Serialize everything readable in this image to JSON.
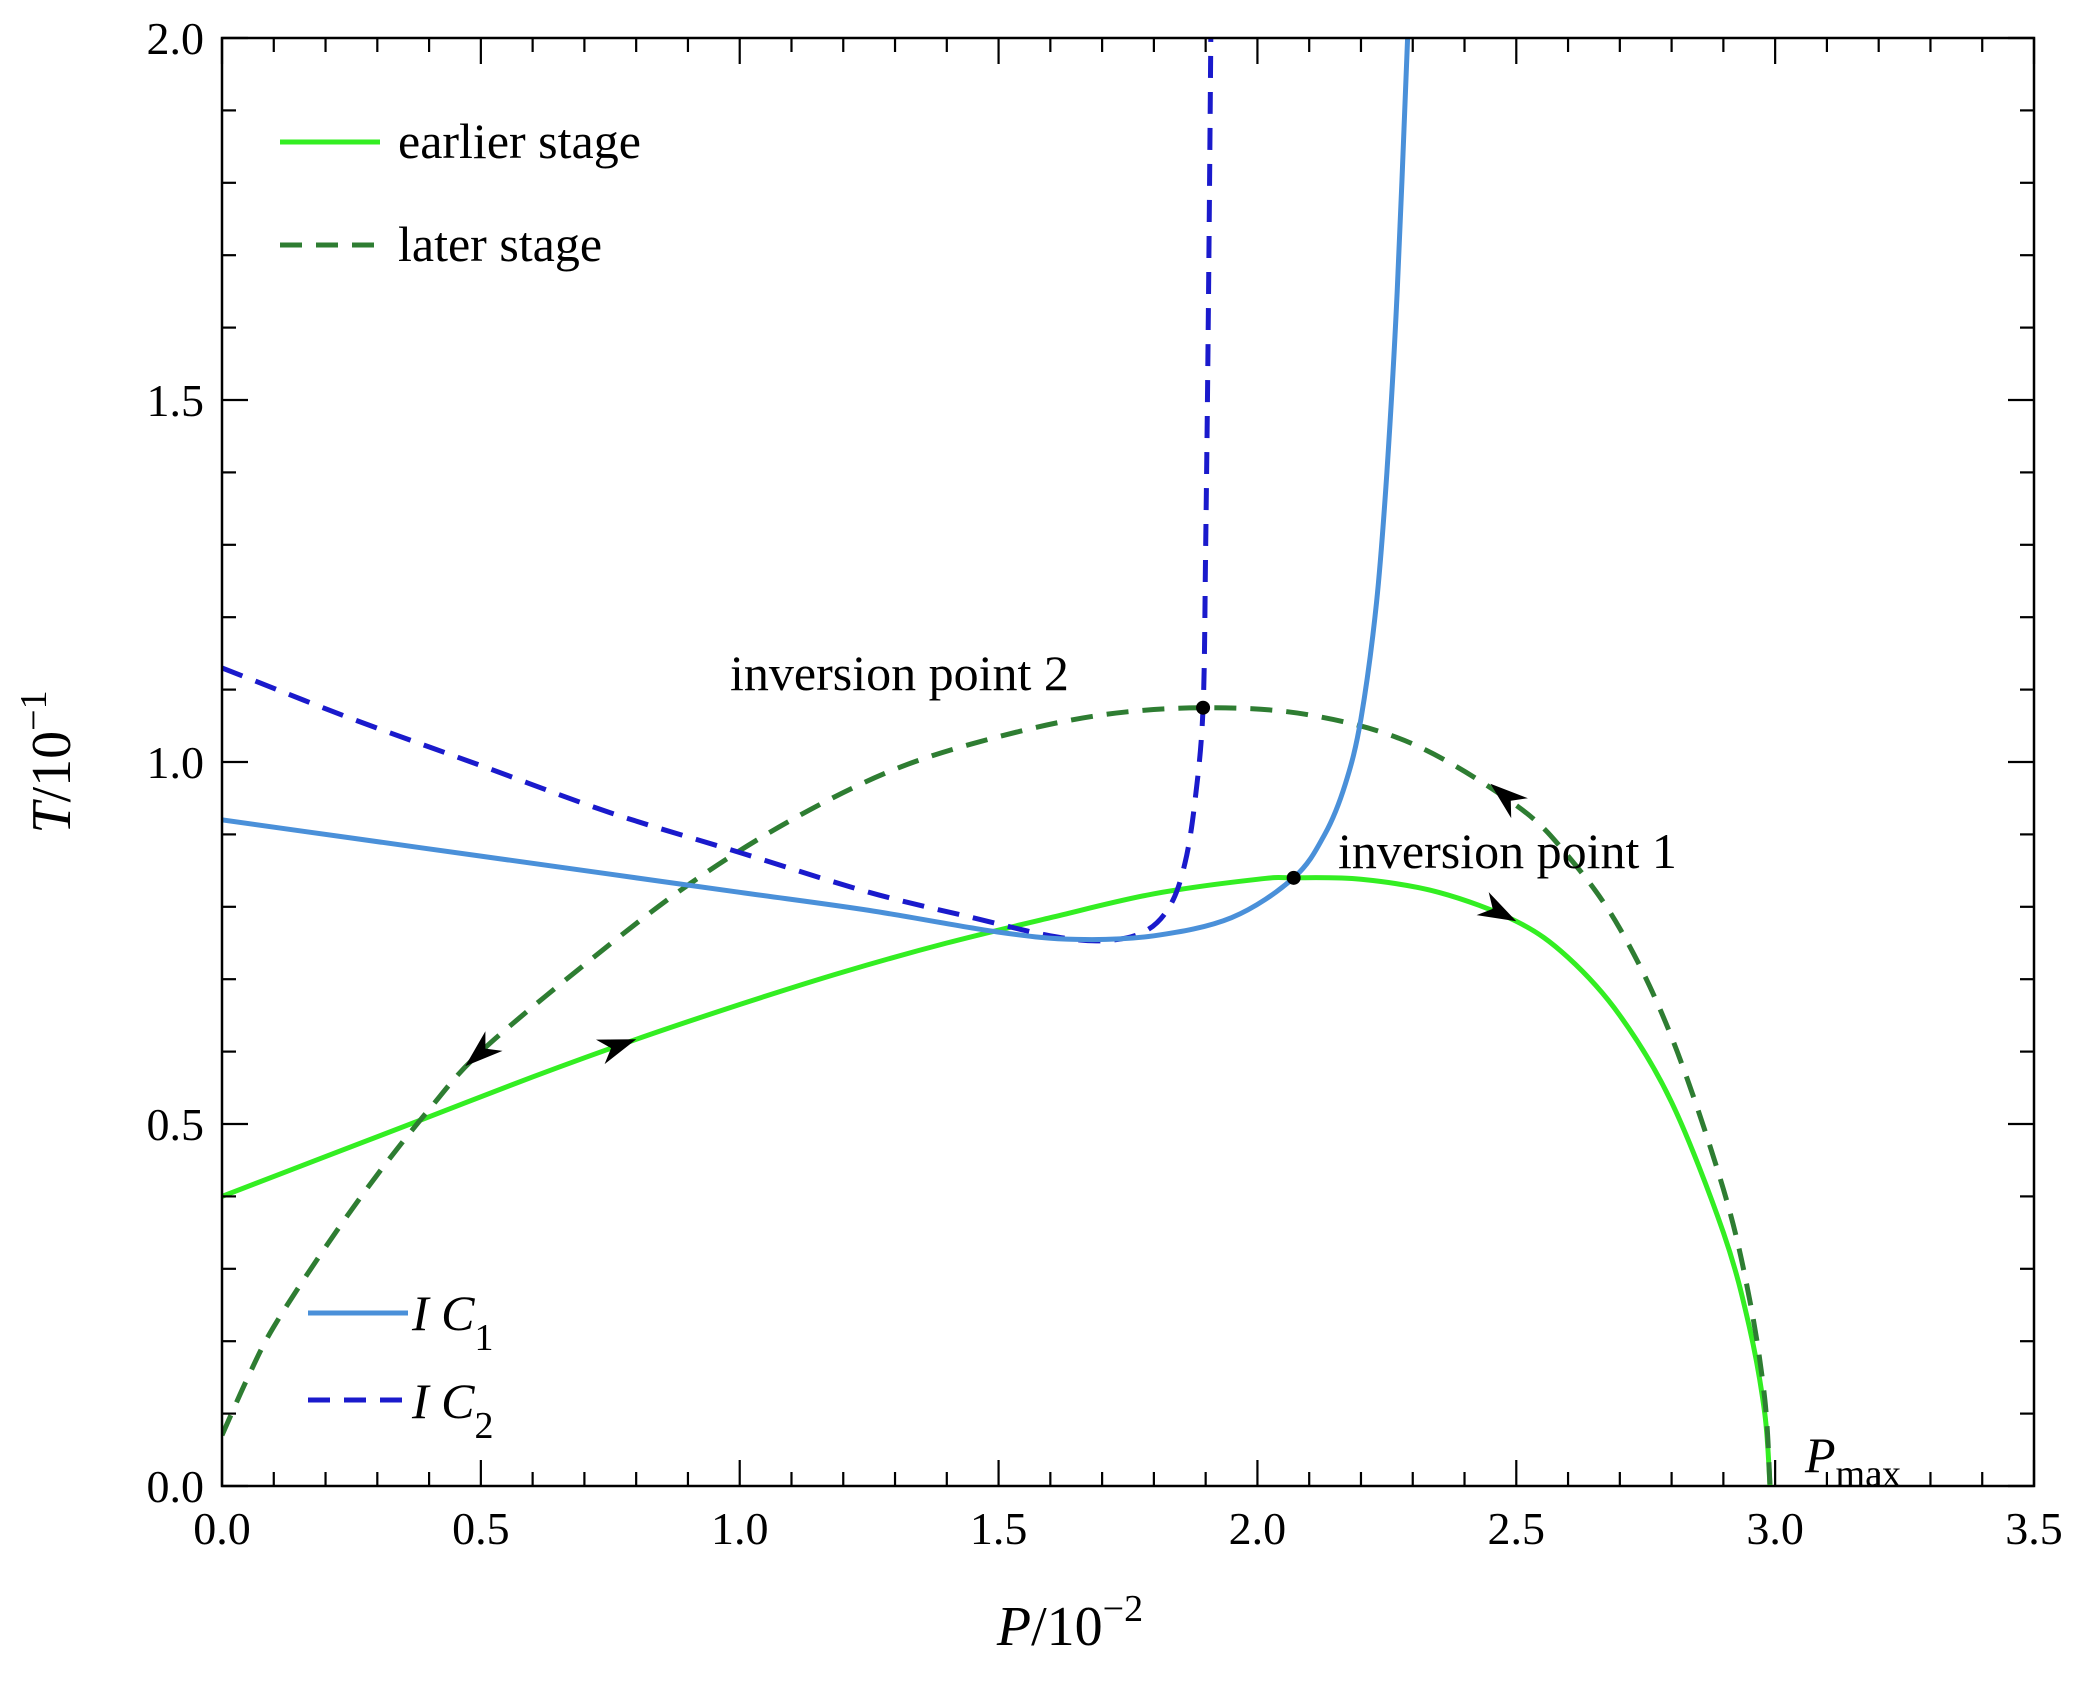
{
  "chart_data": {
    "type": "line",
    "xlabel": {
      "var": "P",
      "unit": "/10",
      "exp": "−2"
    },
    "ylabel": {
      "var": "T",
      "unit": "/10",
      "exp": "−1"
    },
    "xlim": [
      0,
      3.5
    ],
    "ylim": [
      0,
      2.0
    ],
    "x_ticks": [
      "0.0",
      "0.5",
      "1.0",
      "1.5",
      "2.0",
      "2.5",
      "3.0",
      "3.5"
    ],
    "y_ticks": [
      "0.0",
      "0.5",
      "1.0",
      "1.5",
      "2.0"
    ],
    "grid": false,
    "legend_top": [
      {
        "label": "earlier stage",
        "color": "#33ee22",
        "dash": "solid"
      },
      {
        "label": "later stage",
        "color": "#2e7d32",
        "dash": "dashed"
      }
    ],
    "legend_bottom": [
      {
        "label": "I C",
        "sub": "1",
        "color": "#4a90d9",
        "dash": "solid"
      },
      {
        "label": "I C",
        "sub": "2",
        "color": "#1a1acc",
        "dash": "dashed"
      }
    ],
    "series": [
      {
        "name": "earlier stage",
        "color": "#33ee22",
        "style": "solid",
        "points": [
          [
            0,
            0.4
          ],
          [
            0.2,
            0.455
          ],
          [
            0.4,
            0.51
          ],
          [
            0.6,
            0.565
          ],
          [
            0.8,
            0.617
          ],
          [
            1.0,
            0.665
          ],
          [
            1.2,
            0.71
          ],
          [
            1.4,
            0.75
          ],
          [
            1.6,
            0.785
          ],
          [
            1.8,
            0.818
          ],
          [
            2.0,
            0.838
          ],
          [
            2.07,
            0.84
          ],
          [
            2.2,
            0.838
          ],
          [
            2.35,
            0.82
          ],
          [
            2.5,
            0.78
          ],
          [
            2.6,
            0.73
          ],
          [
            2.7,
            0.65
          ],
          [
            2.8,
            0.53
          ],
          [
            2.9,
            0.35
          ],
          [
            2.95,
            0.22
          ],
          [
            2.98,
            0.1
          ],
          [
            2.99,
            0.0
          ]
        ]
      },
      {
        "name": "later stage",
        "color": "#2e7d32",
        "style": "dashed",
        "points": [
          [
            0,
            0.07
          ],
          [
            0.05,
            0.15
          ],
          [
            0.1,
            0.22
          ],
          [
            0.2,
            0.33
          ],
          [
            0.3,
            0.43
          ],
          [
            0.4,
            0.52
          ],
          [
            0.5,
            0.6
          ],
          [
            0.7,
            0.72
          ],
          [
            0.9,
            0.83
          ],
          [
            1.1,
            0.92
          ],
          [
            1.3,
            0.99
          ],
          [
            1.5,
            1.035
          ],
          [
            1.7,
            1.065
          ],
          [
            1.9,
            1.075
          ],
          [
            2.1,
            1.065
          ],
          [
            2.3,
            1.025
          ],
          [
            2.5,
            0.94
          ],
          [
            2.6,
            0.87
          ],
          [
            2.7,
            0.77
          ],
          [
            2.8,
            0.62
          ],
          [
            2.9,
            0.41
          ],
          [
            2.95,
            0.26
          ],
          [
            2.98,
            0.12
          ],
          [
            2.99,
            0.0
          ]
        ]
      },
      {
        "name": "I C1",
        "color": "#4a90d9",
        "style": "solid",
        "points": [
          [
            0,
            0.92
          ],
          [
            0.25,
            0.895
          ],
          [
            0.5,
            0.87
          ],
          [
            0.75,
            0.845
          ],
          [
            1.0,
            0.82
          ],
          [
            1.25,
            0.795
          ],
          [
            1.5,
            0.765
          ],
          [
            1.65,
            0.755
          ],
          [
            1.8,
            0.76
          ],
          [
            1.95,
            0.785
          ],
          [
            2.07,
            0.84
          ],
          [
            2.13,
            0.9
          ],
          [
            2.17,
            0.97
          ],
          [
            2.2,
            1.06
          ],
          [
            2.23,
            1.22
          ],
          [
            2.25,
            1.4
          ],
          [
            2.27,
            1.65
          ],
          [
            2.29,
            2.0
          ]
        ]
      },
      {
        "name": "I C2",
        "color": "#1a1acc",
        "style": "dashed",
        "points": [
          [
            0,
            1.13
          ],
          [
            0.25,
            1.06
          ],
          [
            0.5,
            0.995
          ],
          [
            0.75,
            0.93
          ],
          [
            1.0,
            0.875
          ],
          [
            1.25,
            0.82
          ],
          [
            1.45,
            0.785
          ],
          [
            1.6,
            0.76
          ],
          [
            1.7,
            0.753
          ],
          [
            1.78,
            0.765
          ],
          [
            1.83,
            0.8
          ],
          [
            1.86,
            0.86
          ],
          [
            1.88,
            0.95
          ],
          [
            1.895,
            1.075
          ],
          [
            1.9,
            1.3
          ],
          [
            1.905,
            1.6
          ],
          [
            1.91,
            2.0
          ]
        ]
      }
    ],
    "points": [
      {
        "label": "inversion point 1",
        "x": 2.07,
        "y": 0.84
      },
      {
        "label": "inversion point 2",
        "x": 1.895,
        "y": 1.075
      }
    ],
    "pmax_label": {
      "main": "P",
      "sub": "max"
    },
    "arrows": [
      {
        "series": "earlier stage",
        "from": [
          0.7,
          0.592
        ],
        "to": [
          0.8,
          0.617
        ]
      },
      {
        "series": "earlier stage",
        "from": [
          2.42,
          0.81
        ],
        "to": [
          2.5,
          0.78
        ]
      },
      {
        "series": "later stage",
        "from": [
          2.55,
          0.91
        ],
        "to": [
          2.45,
          0.97
        ]
      },
      {
        "series": "later stage",
        "from": [
          0.55,
          0.63
        ],
        "to": [
          0.47,
          0.58
        ]
      }
    ]
  }
}
